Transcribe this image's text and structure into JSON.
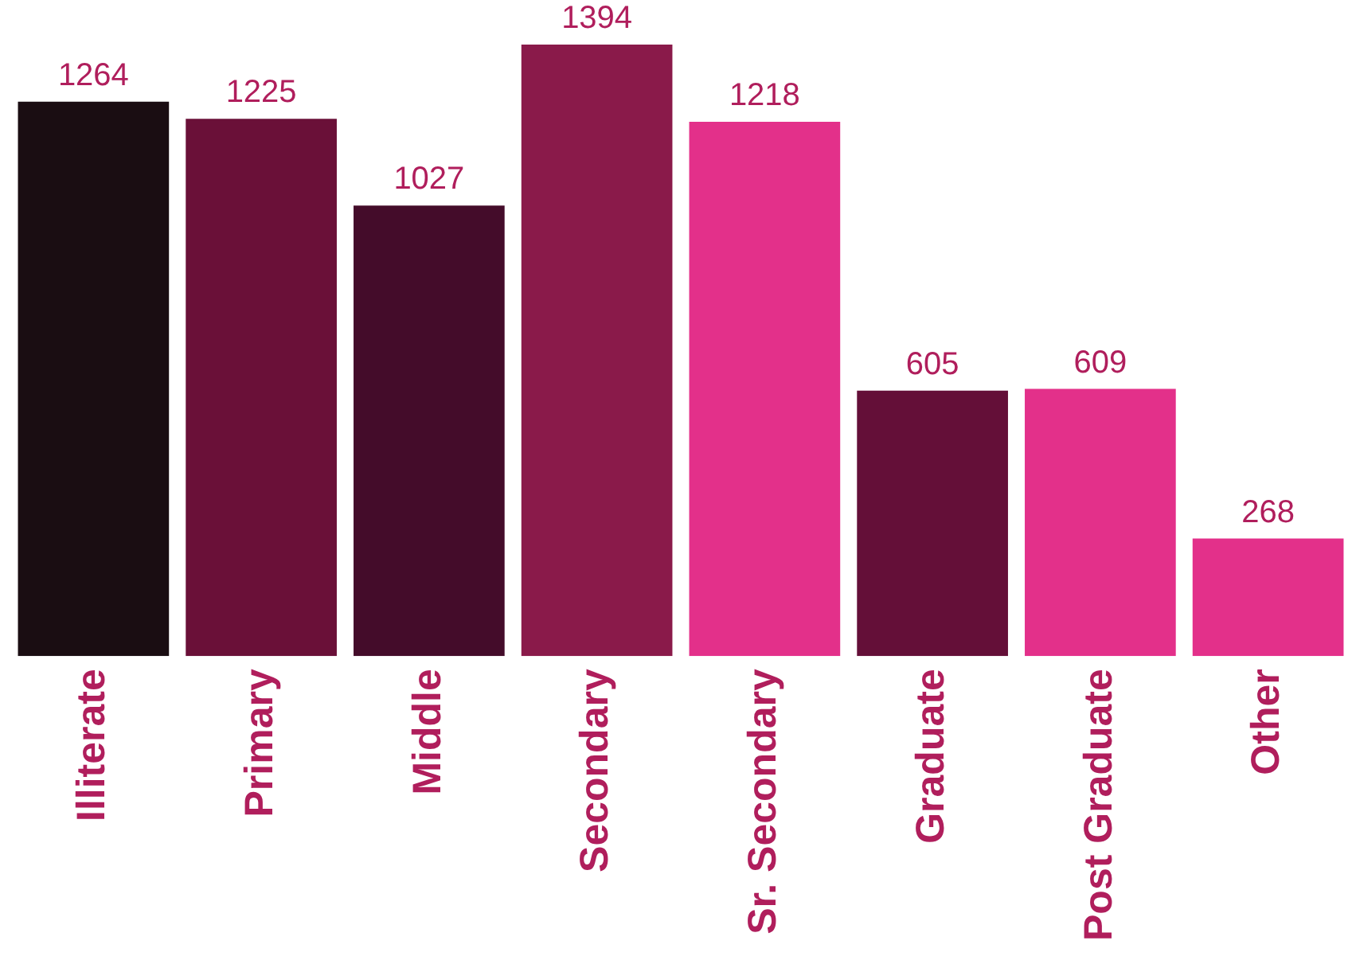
{
  "chart_data": {
    "type": "bar",
    "categories": [
      "Illiterate",
      "Primary",
      "Middle",
      "Secondary",
      "Sr. Secondary",
      "Graduate",
      "Post Graduate",
      "Other"
    ],
    "values": [
      1264,
      1225,
      1027,
      1394,
      1218,
      605,
      609,
      268
    ],
    "colors": [
      "#1a0d12",
      "#6a1038",
      "#440c2a",
      "#8a1a4a",
      "#e3308a",
      "#640f38",
      "#e3308a",
      "#e3308a"
    ],
    "data_labels": true,
    "grid": false,
    "legend": false
  }
}
